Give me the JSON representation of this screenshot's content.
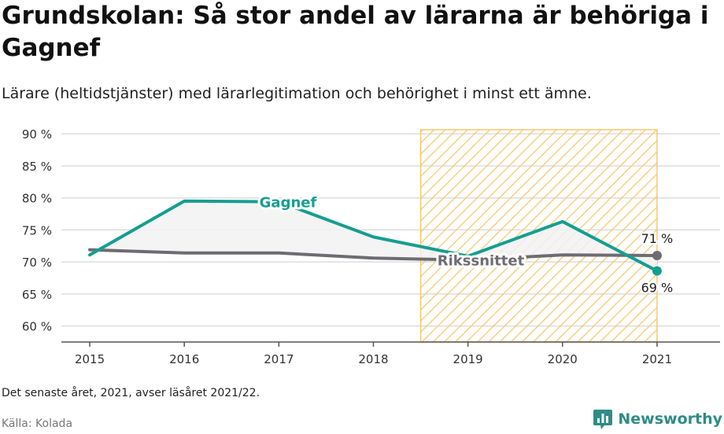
{
  "title": "Grundskolan: Så stor andel av lärarna är behöriga i Gagnef",
  "subtitle": "Lärare (heltidstjänster) med lärarlegitimation och behörighet i minst ett ämne.",
  "footnote": "Det senaste året, 2021, avser läsåret 2021/22.",
  "source": "Källa: Kolada",
  "brand": "Newsworthy",
  "colors": {
    "gagnef": "#159e91",
    "riket": "#6e6c72",
    "highlight": "#f7c86a",
    "grid": "#dddddd",
    "area": "#f2f2f2"
  },
  "chart_data": {
    "type": "line",
    "x": [
      2015,
      2016,
      2017,
      2018,
      2019,
      2020,
      2021
    ],
    "xticks": [
      "2015",
      "2016",
      "2017",
      "2018",
      "2019",
      "2020",
      "2021"
    ],
    "yticks": [
      "60 %",
      "65 %",
      "70 %",
      "75 %",
      "80 %",
      "85 %",
      "90 %"
    ],
    "ylim": [
      57.5,
      91.5
    ],
    "xlim": [
      2014.7,
      2021.5
    ],
    "grid": true,
    "highlight_range": [
      2018.5,
      2021
    ],
    "series": [
      {
        "name": "Gagnef",
        "values": [
          71.1,
          79.5,
          79.4,
          73.9,
          70.9,
          76.3,
          68.6
        ]
      },
      {
        "name": "Rikssnittet",
        "values": [
          71.9,
          71.4,
          71.4,
          70.6,
          70.3,
          71.1,
          71.0
        ]
      }
    ],
    "end_labels": {
      "gagnef": "69 %",
      "riket": "71 %"
    }
  }
}
